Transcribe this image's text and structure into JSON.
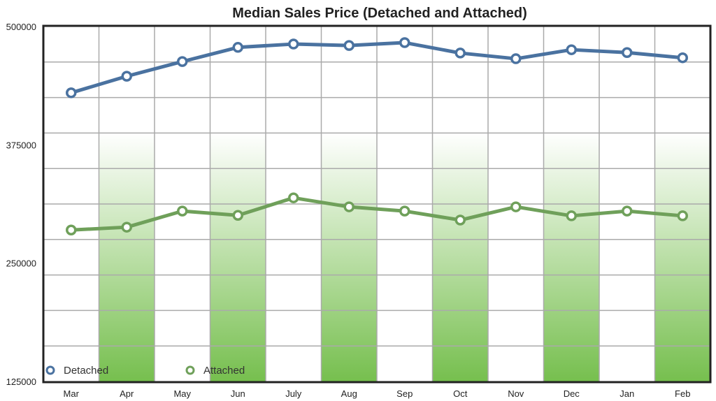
{
  "chart_data": {
    "type": "line",
    "title": "Median Sales Price (Detached and Attached)",
    "xlabel": "",
    "ylabel": "",
    "categories": [
      "Mar",
      "Apr",
      "May",
      "Jun",
      "July",
      "Aug",
      "Sep",
      "Oct",
      "Nov",
      "Dec",
      "Jan",
      "Feb"
    ],
    "ylim": [
      125000,
      500000
    ],
    "yticks": [
      "500000",
      "375000",
      "250000",
      "125000"
    ],
    "grid": true,
    "legend_position": "bottom-left",
    "series": [
      {
        "name": "Detached",
        "color": "#4a72a0",
        "values": [
          430000,
          447500,
          463000,
          478000,
          481500,
          480000,
          483000,
          472000,
          466000,
          475500,
          472500,
          467000
        ]
      },
      {
        "name": "Attached",
        "color": "#6fa05a",
        "values": [
          285000,
          288000,
          305000,
          300500,
          319000,
          309500,
          305000,
          295500,
          309500,
          300000,
          305000,
          300000
        ]
      }
    ],
    "band_color": "#76bf4e"
  }
}
